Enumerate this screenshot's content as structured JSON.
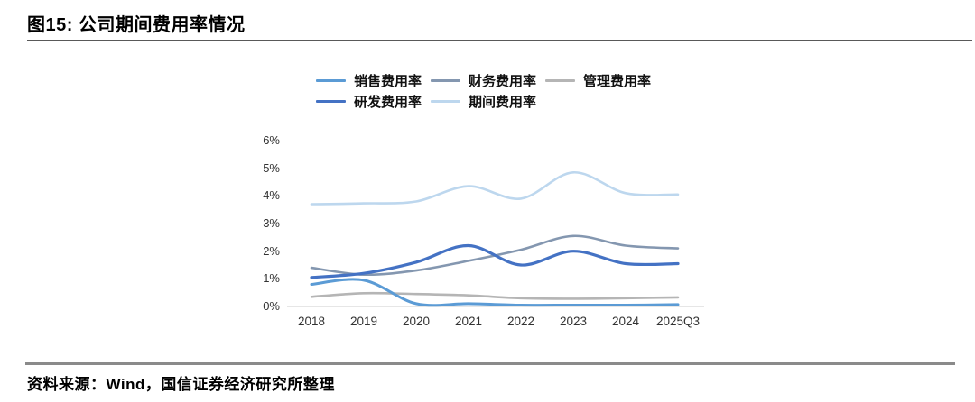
{
  "figure": {
    "title": "图15: 公司期间费用率情况",
    "source": "资料来源：Wind，国信证券经济研究所整理"
  },
  "chart_data": {
    "type": "line",
    "title": "公司期间费用率情况",
    "categories": [
      "2018",
      "2019",
      "2020",
      "2021",
      "2022",
      "2023",
      "2024",
      "2025Q3"
    ],
    "series": [
      {
        "name": "销售费用率",
        "color": "#5B9BD5",
        "line_width": 3,
        "values": [
          0.8,
          0.95,
          0.1,
          0.1,
          0.05,
          0.05,
          0.05,
          0.07
        ]
      },
      {
        "name": "财务费用率",
        "color": "#8497B0",
        "line_width": 2.6,
        "values": [
          1.4,
          1.15,
          1.3,
          1.65,
          2.05,
          2.55,
          2.2,
          2.1
        ]
      },
      {
        "name": "管理费用率",
        "color": "#B5B5B5",
        "line_width": 2.6,
        "values": [
          0.35,
          0.48,
          0.45,
          0.4,
          0.3,
          0.28,
          0.3,
          0.33
        ]
      },
      {
        "name": "研发费用率",
        "color": "#4472C4",
        "line_width": 3.2,
        "values": [
          1.05,
          1.2,
          1.6,
          2.2,
          1.5,
          2.0,
          1.55,
          1.55
        ]
      },
      {
        "name": "期间费用率",
        "color": "#BDD7EE",
        "line_width": 2.6,
        "values": [
          3.7,
          3.73,
          3.8,
          4.35,
          3.9,
          4.85,
          4.1,
          4.05
        ]
      }
    ],
    "ylim": [
      0,
      6
    ],
    "yticks": [
      "0%",
      "1%",
      "2%",
      "3%",
      "4%",
      "5%",
      "6%"
    ],
    "xlabel": "",
    "ylabel": "",
    "grid": false,
    "legend_position": "top",
    "axis_line_color": "#D6D6D6"
  }
}
